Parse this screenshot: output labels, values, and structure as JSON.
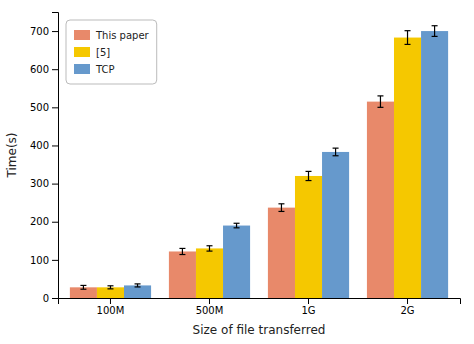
{
  "chart_data": {
    "type": "bar",
    "categories": [
      "100M",
      "500M",
      "1G",
      "2G"
    ],
    "series": [
      {
        "name": "This paper",
        "color": "#E8896A",
        "values": [
          28,
          122,
          237,
          515
        ],
        "errors": [
          5,
          8,
          10,
          15
        ]
      },
      {
        "name": "[5]",
        "color": "#F5C800",
        "values": [
          28,
          130,
          320,
          683
        ],
        "errors": [
          4,
          7,
          12,
          18
        ]
      },
      {
        "name": "TCP",
        "color": "#6699CC",
        "values": [
          33,
          190,
          383,
          700
        ],
        "errors": [
          4,
          6,
          10,
          14
        ]
      }
    ],
    "xlabel": "Size of file transferred",
    "ylabel": "Time(s)",
    "ylim": [
      0,
      750
    ],
    "yticks": [
      0,
      100,
      200,
      300,
      400,
      500,
      600,
      700
    ],
    "legend": "upper left",
    "grid": false
  }
}
